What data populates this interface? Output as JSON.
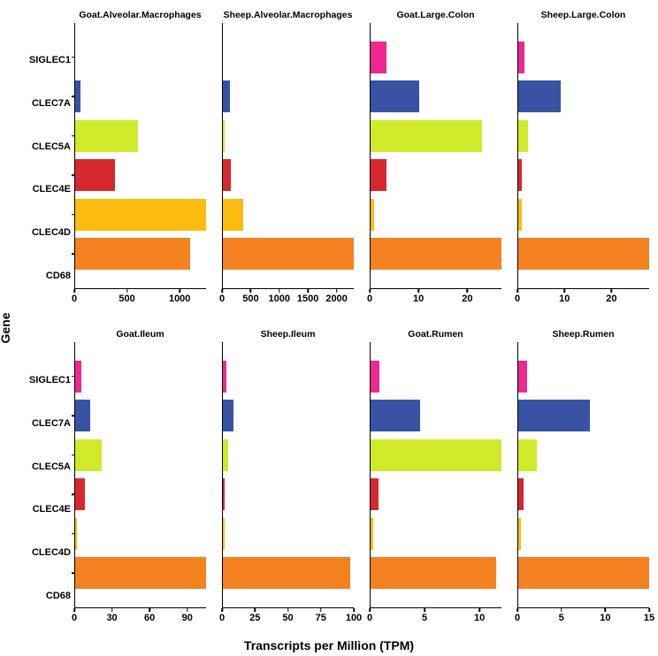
{
  "axis_titles": {
    "y": "Gene",
    "x": "Transcripts per Million (TPM)"
  },
  "genes": [
    "SIGLEC1",
    "CLEC7A",
    "CLEC5A",
    "CLEC4E",
    "CLEC4D",
    "CD68"
  ],
  "gene_colors": {
    "SIGLEC1": "#ed2891",
    "CLEC7A": "#3953a4",
    "CLEC5A": "#d0e92b",
    "CLEC4E": "#d7282f",
    "CLEC4D": "#fdbd10",
    "CD68": "#f58220"
  },
  "style": {
    "background_color": "#ffffff",
    "axis_color": "#000000",
    "panel_title_fontsize": 10.5,
    "tick_label_fontsize": 11,
    "axis_title_fontsize": 14,
    "bar_relative_height": 0.8
  },
  "panels": [
    {
      "title": "Goat.Alveolar.Macrophages",
      "row": 0,
      "col": 0,
      "xlim": [
        0,
        1250
      ],
      "xticks": [
        0,
        500,
        1000
      ],
      "values": {
        "SIGLEC1": 0,
        "CLEC7A": 50,
        "CLEC5A": 600,
        "CLEC4E": 380,
        "CLEC4D": 1250,
        "CD68": 1100
      }
    },
    {
      "title": "Sheep.Alveolar.Macrophages",
      "row": 0,
      "col": 1,
      "xlim": [
        0,
        2300
      ],
      "xticks": [
        0,
        500,
        1000,
        1500,
        2000
      ],
      "values": {
        "SIGLEC1": 0,
        "CLEC7A": 130,
        "CLEC5A": 30,
        "CLEC4E": 140,
        "CLEC4D": 350,
        "CD68": 2300
      }
    },
    {
      "title": "Goat.Large.Colon",
      "row": 0,
      "col": 2,
      "xlim": [
        0,
        27
      ],
      "xticks": [
        0,
        10,
        20
      ],
      "values": {
        "SIGLEC1": 3.2,
        "CLEC7A": 10,
        "CLEC5A": 23,
        "CLEC4E": 3.2,
        "CLEC4D": 0.7,
        "CD68": 27
      }
    },
    {
      "title": "Sheep.Large.Colon",
      "row": 0,
      "col": 3,
      "xlim": [
        0,
        28
      ],
      "xticks": [
        0,
        10,
        20
      ],
      "values": {
        "SIGLEC1": 1.3,
        "CLEC7A": 9,
        "CLEC5A": 2.0,
        "CLEC4E": 0.8,
        "CLEC4D": 0.8,
        "CD68": 28
      }
    },
    {
      "title": "Goat.Ileum",
      "row": 1,
      "col": 0,
      "xlim": [
        0,
        105
      ],
      "xticks": [
        0,
        30,
        60,
        90
      ],
      "values": {
        "SIGLEC1": 5,
        "CLEC7A": 12,
        "CLEC5A": 21,
        "CLEC4E": 8,
        "CLEC4D": 1.5,
        "CD68": 105
      }
    },
    {
      "title": "Sheep.Ileum",
      "row": 1,
      "col": 1,
      "xlim": [
        0,
        100
      ],
      "xticks": [
        0,
        25,
        50,
        75,
        100
      ],
      "values": {
        "SIGLEC1": 2.5,
        "CLEC7A": 8,
        "CLEC5A": 4,
        "CLEC4E": 1.5,
        "CLEC4D": 1.5,
        "CD68": 97
      }
    },
    {
      "title": "Goat.Rumen",
      "row": 1,
      "col": 2,
      "xlim": [
        0,
        12
      ],
      "xticks": [
        0,
        5,
        10
      ],
      "values": {
        "SIGLEC1": 0.8,
        "CLEC7A": 4.5,
        "CLEC5A": 12,
        "CLEC4E": 0.7,
        "CLEC4D": 0.25,
        "CD68": 11.5
      }
    },
    {
      "title": "Sheep.Rumen",
      "row": 1,
      "col": 3,
      "xlim": [
        0,
        15
      ],
      "xticks": [
        0,
        5,
        10,
        15
      ],
      "values": {
        "SIGLEC1": 1.0,
        "CLEC7A": 8.2,
        "CLEC5A": 2.1,
        "CLEC4E": 0.6,
        "CLEC4D": 0.3,
        "CD68": 15
      }
    }
  ]
}
